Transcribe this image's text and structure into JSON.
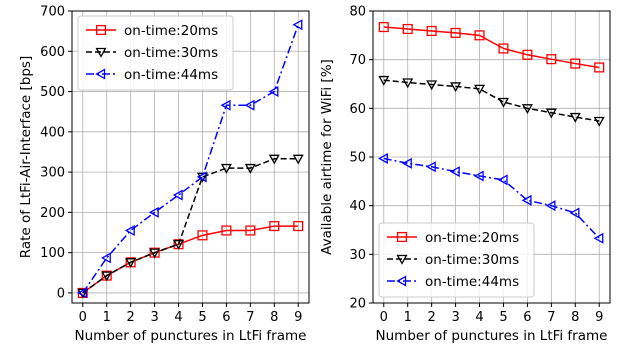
{
  "chart_data": [
    {
      "type": "line",
      "xlabel": "Number of punctures in LtFi frame",
      "ylabel": "Rate of LtFi-Air-Interface [bps]",
      "xlim": [
        -0.45,
        9.45
      ],
      "ylim": [
        -25,
        700
      ],
      "xticks": [
        0,
        1,
        2,
        3,
        4,
        5,
        6,
        7,
        8,
        9
      ],
      "yticks": [
        0,
        100,
        200,
        300,
        400,
        500,
        600,
        700
      ],
      "grid": true,
      "legend": "top-left",
      "x": [
        0,
        1,
        2,
        3,
        4,
        5,
        6,
        7,
        8,
        9
      ],
      "series": [
        {
          "name": "on-time:20ms",
          "color": "#ff0000",
          "dash": "solid",
          "marker": "square",
          "values": [
            0,
            43,
            76,
            100,
            121,
            143,
            155,
            155,
            166,
            166
          ]
        },
        {
          "name": "on-time:30ms",
          "color": "#000000",
          "dash": "dashed",
          "marker": "triangle-down",
          "values": [
            0,
            43,
            76,
            100,
            121,
            288,
            310,
            310,
            333,
            333
          ]
        },
        {
          "name": "on-time:44ms",
          "color": "#0000ff",
          "dash": "dashdot",
          "marker": "triangle-left",
          "values": [
            0,
            87,
            155,
            200,
            243,
            288,
            466,
            466,
            500,
            666
          ]
        }
      ]
    },
    {
      "type": "line",
      "xlabel": "Number of punctures in LtFi frame",
      "ylabel": "Available airtime for WiFi [%]",
      "xlim": [
        -0.45,
        9.45
      ],
      "ylim": [
        20,
        80
      ],
      "xticks": [
        0,
        1,
        2,
        3,
        4,
        5,
        6,
        7,
        8,
        9
      ],
      "yticks": [
        20,
        30,
        40,
        50,
        60,
        70,
        80
      ],
      "grid": true,
      "legend": "bottom-left",
      "x": [
        0,
        1,
        2,
        3,
        4,
        5,
        6,
        7,
        8,
        9
      ],
      "series": [
        {
          "name": "on-time:20ms",
          "color": "#ff0000",
          "dash": "solid",
          "marker": "square",
          "values": [
            76.7,
            76.3,
            75.9,
            75.5,
            75.0,
            72.3,
            71.0,
            70.1,
            69.2,
            68.4
          ]
        },
        {
          "name": "on-time:30ms",
          "color": "#000000",
          "dash": "dashed",
          "marker": "triangle-down",
          "values": [
            65.8,
            65.3,
            64.9,
            64.5,
            64.0,
            61.3,
            60.0,
            59.1,
            58.2,
            57.4
          ]
        },
        {
          "name": "on-time:44ms",
          "color": "#0000ff",
          "dash": "dashdot",
          "marker": "triangle-left",
          "values": [
            49.7,
            48.7,
            48.0,
            47.0,
            46.1,
            45.3,
            41.1,
            40.0,
            38.5,
            33.3
          ]
        }
      ]
    }
  ]
}
